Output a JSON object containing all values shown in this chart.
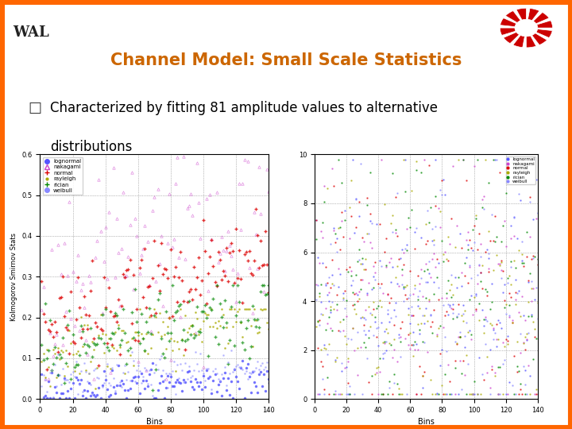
{
  "title": "Channel Model: Small Scale Statistics",
  "title_color": "#CC6600",
  "bullet_text_line1": "Characterized by fitting 81 amplitude values to alternative",
  "bullet_text_line2": "distributions",
  "bg_color": "#FFFFFF",
  "header_bar_color": "#55CCEE",
  "outer_border_color": "#FF6600",
  "logo_text": "WAL",
  "legend_labels": [
    "lognormal",
    "nakagami",
    "normal",
    "rayleigh",
    "rician",
    "weibull"
  ],
  "legend_colors": [
    "#5555FF",
    "#CC44CC",
    "#DD0000",
    "#AAAA00",
    "#008800",
    "#8888FF"
  ],
  "legend_markers": [
    "o",
    "^",
    "+",
    ".",
    "+",
    "s"
  ],
  "left_plot": {
    "xlabel": "Bins",
    "ylabel": "Kolmogorov Smirnov Stats",
    "xlim": [
      0,
      140
    ],
    "ylim": [
      0,
      0.6
    ],
    "yticks": [
      0,
      0.1,
      0.2,
      0.3,
      0.4,
      0.5,
      0.6
    ],
    "xticks": [
      0,
      20,
      40,
      60,
      80,
      100,
      120,
      140
    ]
  },
  "right_plot": {
    "xlabel": "Bins",
    "xlim": [
      0,
      140
    ],
    "ylim": [
      0,
      10
    ],
    "xticks": [
      0,
      20,
      40,
      60,
      80,
      100,
      120,
      140
    ]
  }
}
